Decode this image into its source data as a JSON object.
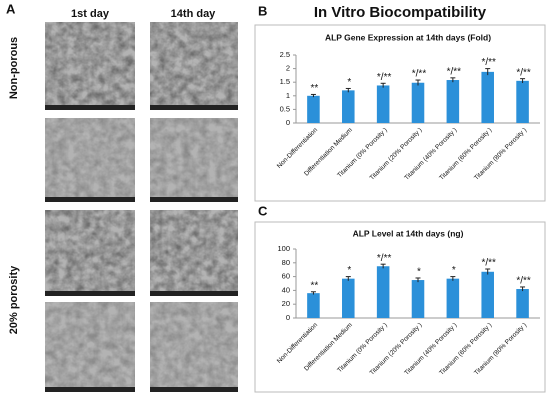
{
  "figure_title": "In Vitro Biocompatibility",
  "panel_labels": [
    "A",
    "B",
    "C"
  ],
  "panel_a": {
    "columns": [
      "1st day",
      "14th day"
    ],
    "rows": [
      "Non-porous",
      "20% porosity"
    ]
  },
  "chart_data": [
    {
      "type": "bar",
      "title": "ALP  Gene Expression  at 14th days (Fold)",
      "categories": [
        "Non-Differentiation",
        "Differentiation Medium",
        "Titanium (0% Porosity )",
        "Titanium (20% Porosity )",
        "Titanium (40% Porosity )",
        "Titanium (60% Porosity )",
        "Titanium (80% Porosity )"
      ],
      "values": [
        1.0,
        1.2,
        1.38,
        1.48,
        1.58,
        1.88,
        1.55
      ],
      "errors": [
        0.05,
        0.07,
        0.08,
        0.1,
        0.08,
        0.12,
        0.08
      ],
      "annotations": [
        "**",
        "*",
        "*/**",
        "*/**",
        "*/**",
        "*/**",
        "*/**"
      ],
      "color": "#2b90d9",
      "ylim": [
        0,
        2.5
      ],
      "yticks": [
        0,
        0.5,
        1,
        1.5,
        2,
        2.5
      ],
      "grid": false
    },
    {
      "type": "bar",
      "title": "ALP Level at 14th days (ng)",
      "categories": [
        "Non-Differentiation",
        "Differentiation Medium",
        "Titanium (0% Porosity )",
        "Titanium (20% Porosity )",
        "Titanium (40% Porosity )",
        "Titanium (60% Porosity )",
        "Titanium (80% Porosity )"
      ],
      "values": [
        36,
        57,
        75,
        55,
        57,
        67,
        42
      ],
      "errors": [
        2,
        3,
        3,
        3,
        3,
        4,
        3
      ],
      "annotations": [
        "**",
        "*",
        "*/**",
        "*",
        "*",
        "*/**",
        "*/**"
      ],
      "color": "#2b90d9",
      "ylim": [
        0,
        100
      ],
      "yticks": [
        0,
        20,
        40,
        60,
        80,
        100
      ],
      "grid": false
    }
  ]
}
